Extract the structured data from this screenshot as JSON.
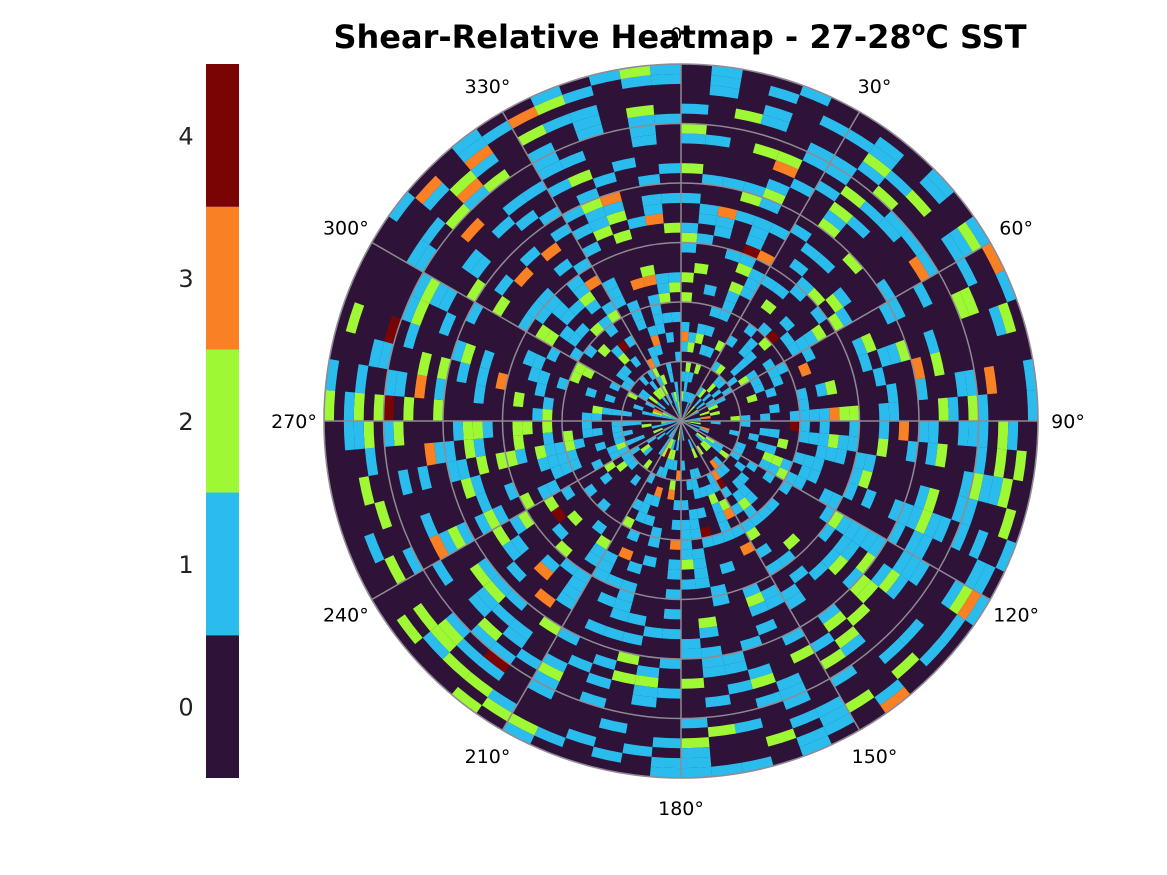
{
  "chart_data": {
    "type": "heatmap",
    "projection": "polar",
    "title": "Shear-Relative Heatmap - 27-28",
    "title_superscript": "o",
    "title_suffix": "C SST",
    "angle_direction": "clockwise",
    "zero_angle_location": "top",
    "angular_tick_labels": [
      "0°",
      "30°",
      "60°",
      "90°",
      "120°",
      "150°",
      "180°",
      "210°",
      "240°",
      "270°",
      "300°",
      "330°"
    ],
    "radial_grid": "on",
    "colorbar": {
      "position": "left",
      "levels": [
        0,
        1,
        2,
        3,
        4
      ],
      "tick_labels": [
        "0",
        "1",
        "2",
        "3",
        "4"
      ],
      "colors": [
        "#2e1237",
        "#2bbcee",
        "#9ef834",
        "#f98123",
        "#7a0403"
      ]
    },
    "sample_cells": [
      {
        "theta": 7,
        "ring": 14,
        "value": 1
      },
      {
        "theta": 15,
        "ring": 12,
        "value": 1
      },
      {
        "theta": 22,
        "ring": 10,
        "value": 1
      },
      {
        "theta": 335,
        "ring": 13,
        "value": 2
      },
      {
        "theta": 325,
        "ring": 11,
        "value": 1
      },
      {
        "theta": 312,
        "ring": 14,
        "value": 3
      },
      {
        "theta": 45,
        "ring": 9,
        "value": 2
      },
      {
        "theta": 60,
        "ring": 12,
        "value": 1
      },
      {
        "theta": 75,
        "ring": 13,
        "value": 2
      },
      {
        "theta": 92,
        "ring": 11,
        "value": 3
      },
      {
        "theta": 95,
        "ring": 8,
        "value": 1
      },
      {
        "theta": 110,
        "ring": 10,
        "value": 1
      },
      {
        "theta": 130,
        "ring": 12,
        "value": 2
      },
      {
        "theta": 148,
        "ring": 14,
        "value": 2
      },
      {
        "theta": 165,
        "ring": 9,
        "value": 1
      },
      {
        "theta": 178,
        "ring": 15,
        "value": 1
      },
      {
        "theta": 195,
        "ring": 11,
        "value": 1
      },
      {
        "theta": 215,
        "ring": 13,
        "value": 1
      },
      {
        "theta": 235,
        "ring": 14,
        "value": 1
      },
      {
        "theta": 255,
        "ring": 10,
        "value": 2
      },
      {
        "theta": 272,
        "ring": 12,
        "value": 2
      },
      {
        "theta": 287,
        "ring": 15,
        "value": 4
      },
      {
        "theta": 300,
        "ring": 9,
        "value": 1
      },
      {
        "theta": 345,
        "ring": 7,
        "value": 3
      },
      {
        "theta": 352,
        "ring": 10,
        "value": 3
      },
      {
        "theta": 20,
        "ring": 6,
        "value": 1
      },
      {
        "theta": 120,
        "ring": 6,
        "value": 1
      },
      {
        "theta": 240,
        "ring": 7,
        "value": 1
      },
      {
        "theta": 150,
        "ring": 7,
        "value": 3
      },
      {
        "theta": 328,
        "ring": 8,
        "value": 3
      }
    ]
  }
}
